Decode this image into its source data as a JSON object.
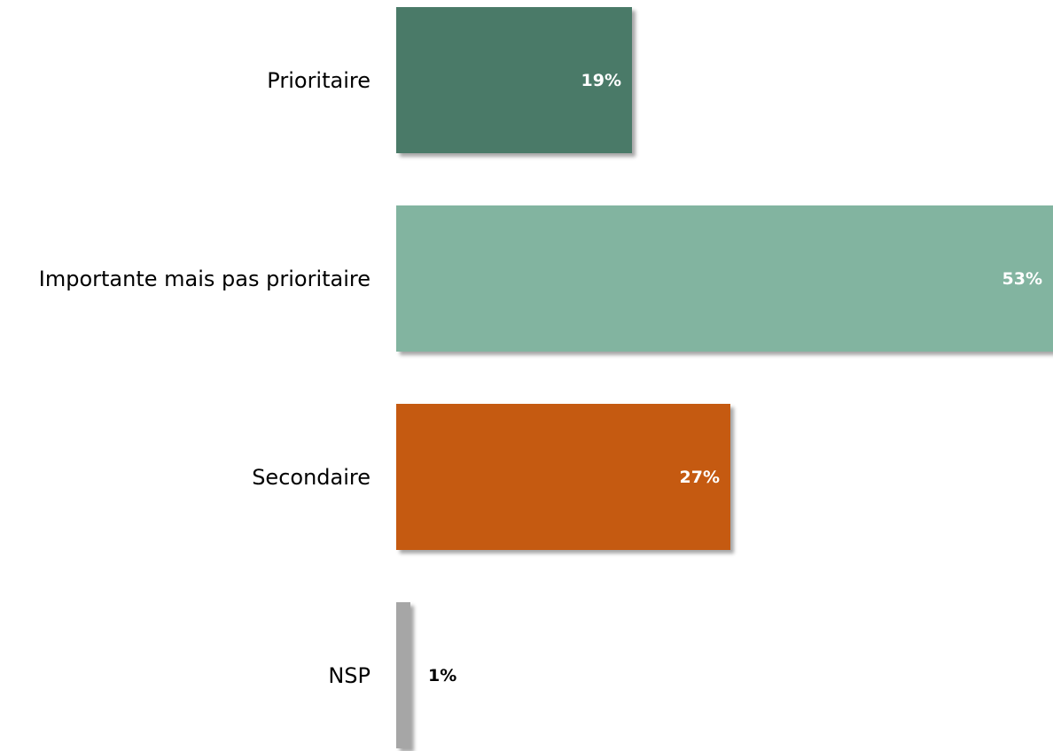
{
  "chart_data": {
    "type": "bar",
    "orientation": "horizontal",
    "categories": [
      "Prioritaire",
      "Importante mais pas prioritaire",
      "Secondaire",
      "NSP"
    ],
    "values": [
      19,
      53,
      27,
      1
    ],
    "value_labels": [
      "19%",
      "53%",
      "27%",
      "1%"
    ],
    "colors": [
      "#4a7a68",
      "#82b4a0",
      "#c55a11",
      "#a6a6a6"
    ],
    "unit": "%",
    "xlim": [
      0,
      53
    ],
    "title": "",
    "xlabel": "",
    "ylabel": "",
    "grid": false,
    "legend": "none"
  }
}
